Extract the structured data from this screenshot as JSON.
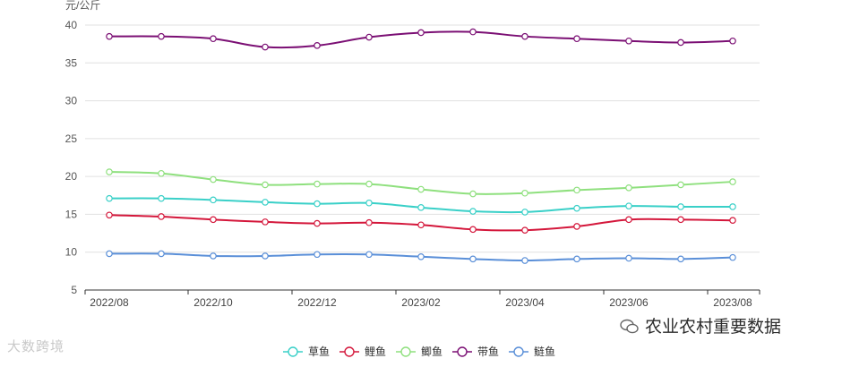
{
  "chart_data": {
    "type": "line",
    "ylabel": "元/公斤",
    "ylim": [
      5,
      40
    ],
    "yticks": [
      5,
      10,
      15,
      20,
      25,
      30,
      35,
      40
    ],
    "x": [
      "2022/08",
      "2022/09",
      "2022/10",
      "2022/11",
      "2022/12",
      "2023/01",
      "2023/02",
      "2023/03",
      "2023/04",
      "2023/05",
      "2023/06",
      "2023/07",
      "2023/08"
    ],
    "xtick_labels": [
      "2022/08",
      "2022/10",
      "2022/12",
      "2023/02",
      "2023/04",
      "2023/06",
      "2023/08"
    ],
    "grid": true,
    "legend_position": "bottom-center",
    "series": [
      {
        "name": "草鱼",
        "color": "#3ad0c8",
        "values": [
          17.1,
          17.1,
          16.9,
          16.6,
          16.4,
          16.5,
          15.9,
          15.4,
          15.3,
          15.8,
          16.1,
          16.0,
          16.0
        ]
      },
      {
        "name": "鲤鱼",
        "color": "#d4173b",
        "values": [
          14.9,
          14.7,
          14.3,
          14.0,
          13.8,
          13.9,
          13.6,
          13.0,
          12.9,
          13.4,
          14.3,
          14.3,
          14.2
        ]
      },
      {
        "name": "鲫鱼",
        "color": "#8fe07e",
        "values": [
          20.6,
          20.4,
          19.6,
          18.9,
          19.0,
          19.0,
          18.3,
          17.7,
          17.8,
          18.2,
          18.5,
          18.9,
          19.3
        ]
      },
      {
        "name": "带鱼",
        "color": "#7b0f74",
        "values": [
          38.5,
          38.5,
          38.2,
          37.1,
          37.3,
          38.4,
          39.0,
          39.1,
          38.5,
          38.2,
          37.9,
          37.7,
          37.9
        ]
      },
      {
        "name": "鲢鱼",
        "color": "#5a8fd8",
        "values": [
          9.8,
          9.8,
          9.5,
          9.5,
          9.7,
          9.7,
          9.4,
          9.1,
          8.9,
          9.1,
          9.2,
          9.1,
          9.3
        ]
      }
    ]
  },
  "watermarks": {
    "left": "大数跨境",
    "right": "农业农村重要数据"
  }
}
